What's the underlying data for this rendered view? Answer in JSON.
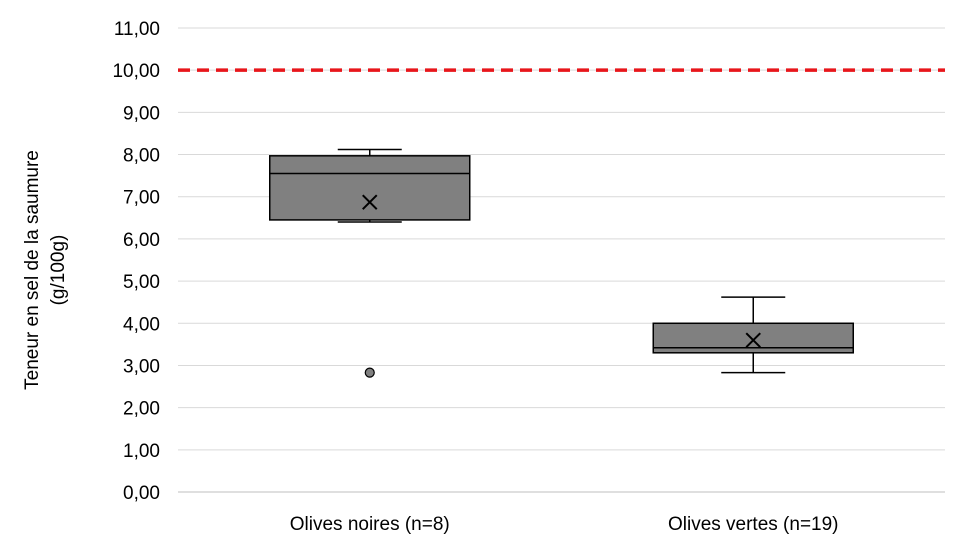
{
  "chart_data": {
    "type": "box",
    "title": "",
    "xlabel": "",
    "ylabel": [
      "Teneur en sel de la saumure",
      "(g/100g)"
    ],
    "ylim": [
      0,
      11
    ],
    "ytick_step": 1,
    "ytick_labels": [
      "0,00",
      "1,00",
      "2,00",
      "3,00",
      "4,00",
      "5,00",
      "6,00",
      "7,00",
      "8,00",
      "9,00",
      "10,00",
      "11,00"
    ],
    "grid": true,
    "legend": "none",
    "reference_line": {
      "y": 10.0,
      "style": "dashed",
      "color": "#e8161b"
    },
    "box_color": "#808080",
    "categories": [
      "Olives noires (n=8)",
      "Olives vertes (n=19)"
    ],
    "boxes": [
      {
        "category": "Olives noires (n=8)",
        "whisker_low": 6.4,
        "q1": 6.45,
        "median": 7.55,
        "q3": 7.97,
        "whisker_high": 8.12,
        "mean": 6.87,
        "outliers": [
          2.83
        ]
      },
      {
        "category": "Olives vertes (n=19)",
        "whisker_low": 2.83,
        "q1": 3.3,
        "median": 3.42,
        "q3": 4.0,
        "whisker_high": 4.62,
        "mean": 3.6,
        "outliers": []
      }
    ]
  }
}
